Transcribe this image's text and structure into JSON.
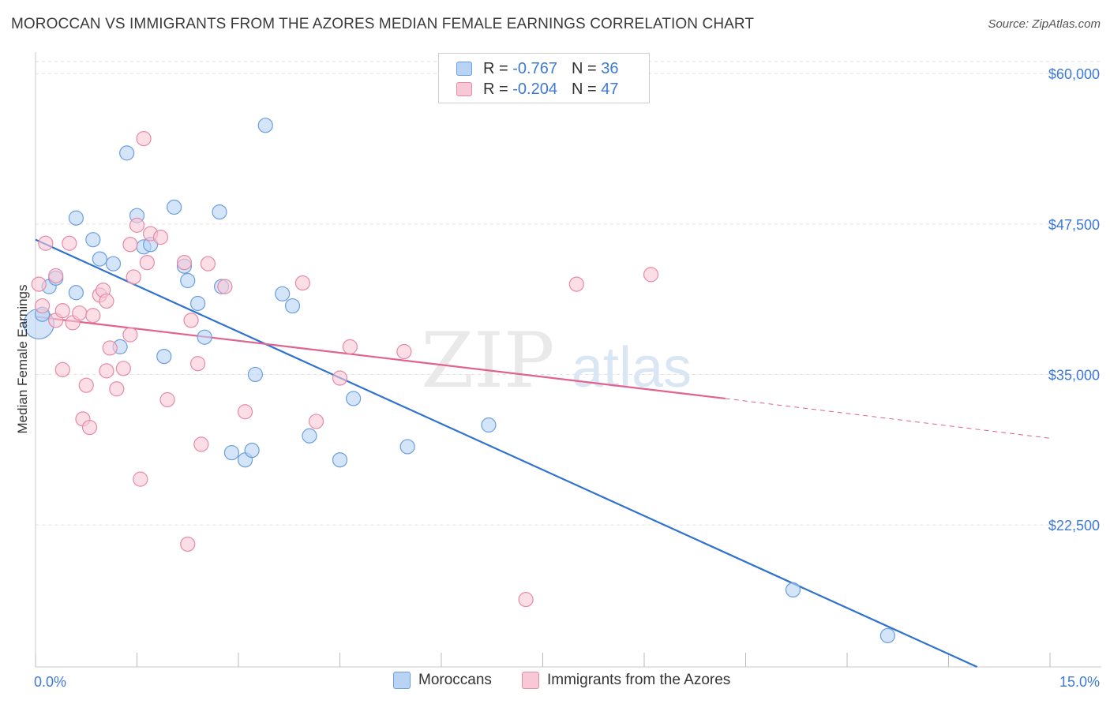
{
  "title": "MOROCCAN VS IMMIGRANTS FROM THE AZORES MEDIAN FEMALE EARNINGS CORRELATION CHART",
  "source": "Source: ZipAtlas.com",
  "watermark": {
    "zip": "ZIP",
    "atlas": "atlas"
  },
  "legend": {
    "rows": [
      {
        "r_label": "R =",
        "r_value": "-0.767",
        "n_label": "N =",
        "n_value": "36"
      },
      {
        "r_label": "R =",
        "r_value": "-0.204",
        "n_label": "N =",
        "n_value": "47"
      }
    ]
  },
  "bottom_legend": {
    "series_a": "Moroccans",
    "series_b": "Immigrants from the Azores"
  },
  "colors": {
    "blue_fill": "#b9d3f5",
    "blue_stroke": "#6a9edf",
    "blue_line": "#2f72d0",
    "pink_fill": "#f8c8d6",
    "pink_stroke": "#e68aa6",
    "pink_line": "#e0628d",
    "axis_label": "#3d7ad6",
    "grid": "#e2e2e2"
  },
  "chart_data": {
    "type": "scatter",
    "xlabel": "",
    "ylabel": "Median Female Earnings",
    "xlim": [
      0,
      15
    ],
    "ylim": [
      10700,
      61000
    ],
    "x_tick_labels": [
      "0.0%",
      "15.0%"
    ],
    "y_ticks": [
      22500,
      35000,
      47500,
      60000
    ],
    "y_tick_labels": [
      "$22,500",
      "$35,000",
      "$47,500",
      "$60,000"
    ],
    "grid": true,
    "series": [
      {
        "name": "Moroccans",
        "color": "#6a9edf",
        "trend": {
          "x": [
            0.0,
            14.0
          ],
          "y": [
            46200,
            10500
          ]
        },
        "points": [
          [
            0.05,
            39200
          ],
          [
            0.2,
            42300
          ],
          [
            0.3,
            43000
          ],
          [
            0.6,
            48000
          ],
          [
            0.6,
            41800
          ],
          [
            0.85,
            46200
          ],
          [
            0.95,
            44600
          ],
          [
            1.15,
            44200
          ],
          [
            1.25,
            37300
          ],
          [
            1.35,
            53400
          ],
          [
            1.5,
            48200
          ],
          [
            1.6,
            45600
          ],
          [
            1.7,
            45800
          ],
          [
            1.9,
            36500
          ],
          [
            2.05,
            48900
          ],
          [
            2.2,
            44000
          ],
          [
            2.25,
            42800
          ],
          [
            2.4,
            40900
          ],
          [
            2.5,
            38100
          ],
          [
            2.72,
            48500
          ],
          [
            2.75,
            42300
          ],
          [
            2.9,
            28500
          ],
          [
            3.1,
            27900
          ],
          [
            3.2,
            28700
          ],
          [
            3.25,
            35000
          ],
          [
            3.4,
            55700
          ],
          [
            3.65,
            41700
          ],
          [
            3.8,
            40700
          ],
          [
            4.05,
            29900
          ],
          [
            4.5,
            27900
          ],
          [
            4.7,
            33000
          ],
          [
            5.5,
            29000
          ],
          [
            6.7,
            30800
          ],
          [
            11.2,
            17100
          ],
          [
            12.6,
            13300
          ],
          [
            0.1,
            40000
          ]
        ]
      },
      {
        "name": "Immigrants from the Azores",
        "color": "#e68aa6",
        "trend": {
          "x": [
            0.0,
            10.2
          ],
          "y": [
            39800,
            33000
          ]
        },
        "trend_dashed": {
          "x": [
            10.2,
            15.0
          ],
          "y": [
            33000,
            29700
          ]
        },
        "points": [
          [
            0.05,
            42500
          ],
          [
            0.1,
            40700
          ],
          [
            0.15,
            45900
          ],
          [
            0.3,
            43200
          ],
          [
            0.3,
            39500
          ],
          [
            0.4,
            40300
          ],
          [
            0.4,
            35400
          ],
          [
            0.5,
            45900
          ],
          [
            0.55,
            39300
          ],
          [
            0.65,
            40100
          ],
          [
            0.7,
            31300
          ],
          [
            0.75,
            34100
          ],
          [
            0.8,
            30600
          ],
          [
            0.85,
            39900
          ],
          [
            0.95,
            41600
          ],
          [
            1.0,
            42000
          ],
          [
            1.05,
            41100
          ],
          [
            1.05,
            35300
          ],
          [
            1.1,
            37200
          ],
          [
            1.2,
            33800
          ],
          [
            1.3,
            35500
          ],
          [
            1.4,
            38300
          ],
          [
            1.4,
            45800
          ],
          [
            1.45,
            43100
          ],
          [
            1.5,
            47400
          ],
          [
            1.55,
            26300
          ],
          [
            1.6,
            54600
          ],
          [
            1.65,
            44300
          ],
          [
            1.7,
            46700
          ],
          [
            1.85,
            46400
          ],
          [
            1.95,
            32900
          ],
          [
            2.2,
            44300
          ],
          [
            2.25,
            20900
          ],
          [
            2.3,
            39500
          ],
          [
            2.4,
            35900
          ],
          [
            2.45,
            29200
          ],
          [
            2.55,
            44200
          ],
          [
            2.8,
            42300
          ],
          [
            3.1,
            31900
          ],
          [
            3.95,
            42600
          ],
          [
            4.15,
            31100
          ],
          [
            4.5,
            34700
          ],
          [
            4.65,
            37300
          ],
          [
            5.45,
            36900
          ],
          [
            8.0,
            42500
          ],
          [
            9.1,
            43300
          ],
          [
            7.25,
            16300
          ]
        ]
      }
    ]
  }
}
